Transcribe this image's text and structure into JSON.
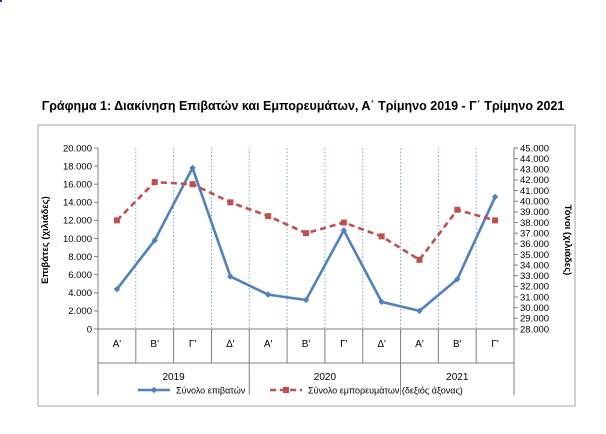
{
  "title": "Γράφημα 1: Διακίνηση Επιβατών και Εμπορευμάτων, Α΄ Τρίμηνο 2019 - Γ΄ Τρίμηνο 2021",
  "chart_data": {
    "type": "line",
    "title": "Γράφημα 1: Διακίνηση Επιβατών και Εμπορευμάτων, Α΄ Τρίμηνο 2019 - Γ΄ Τρίμηνο 2021",
    "ylabel_left": "Επιβάτες  (χιλιάδες)",
    "ylabel_right": "Τόνοι  (χιλιάδες)",
    "ylim_left": [
      0,
      20
    ],
    "yticks_left": [
      "0",
      "2.000",
      "4.000",
      "6.000",
      "8.000",
      "10.000",
      "12.000",
      "14.000",
      "16.000",
      "18.000",
      "20.000"
    ],
    "ylim_right": [
      28,
      45
    ],
    "yticks_right": [
      "28.000",
      "29.000",
      "30.000",
      "31.000",
      "32.000",
      "33.000",
      "34.000",
      "35.000",
      "36.000",
      "37.000",
      "38.000",
      "39.000",
      "40.000",
      "41.000",
      "42.000",
      "43.000",
      "44.000",
      "45.000"
    ],
    "categories": [
      "Α'",
      "Β'",
      "Γ'",
      "Δ'",
      "Α'",
      "Β'",
      "Γ'",
      "Δ'",
      "Α'",
      "Β'",
      "Γ'"
    ],
    "years": [
      {
        "label": "2019",
        "span": 4
      },
      {
        "label": "2020",
        "span": 4
      },
      {
        "label": "2021",
        "span": 3
      }
    ],
    "series": [
      {
        "name": "Σύνολο επιβατών",
        "axis": "left",
        "color": "#4f81bd",
        "style": "solid",
        "marker": "diamond",
        "values": [
          4.4,
          9.8,
          17.8,
          5.8,
          3.8,
          3.2,
          10.9,
          3.0,
          2.0,
          5.5,
          14.6
        ]
      },
      {
        "name": "Σύνολο εμπορευμάτων (δεξιός άξονας)",
        "axis": "right",
        "color": "#c0504d",
        "style": "dashed",
        "marker": "square",
        "values": [
          38.2,
          41.8,
          41.6,
          39.9,
          38.6,
          37.0,
          38.0,
          36.7,
          34.5,
          39.2,
          38.2
        ]
      }
    ],
    "grid": "vertical-dotted",
    "legend": "bottom"
  }
}
